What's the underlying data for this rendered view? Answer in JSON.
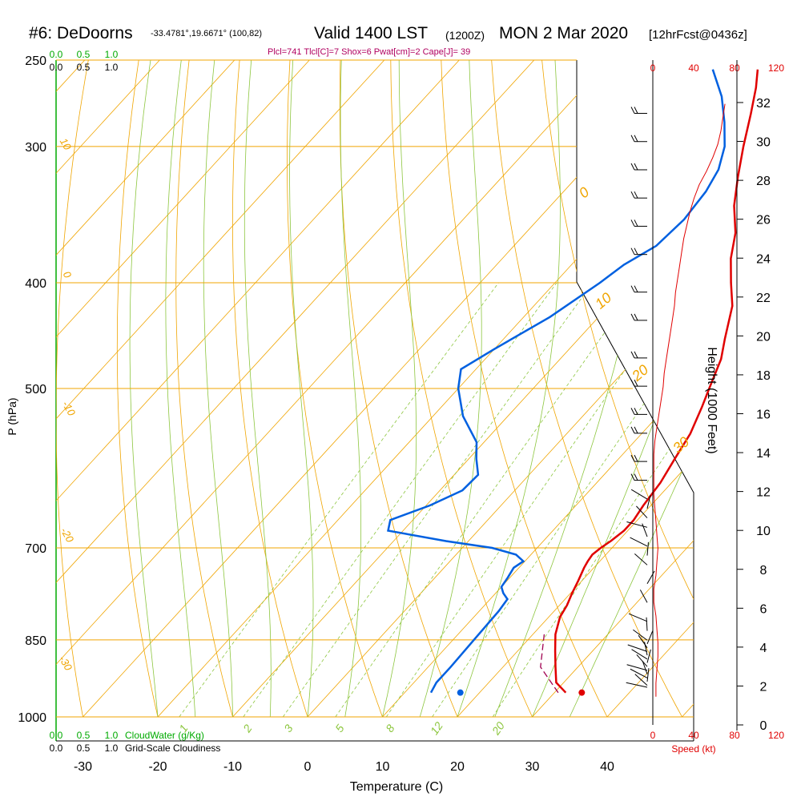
{
  "header": {
    "station": "#6: DeDoorns",
    "coords": "-33.4781°,19.6671° (100,82)",
    "valid": "Valid 1400 LST",
    "zulu": "(1200Z)",
    "date": "MON 2 Mar 2020",
    "forecast": "[12hrFcst@0436z]",
    "params": "Plcl=741 Tlcl[C]=7 Shox=6 Pwat[cm]=2 Cape[J]= 39"
  },
  "chart_data": {
    "type": "skew-t",
    "xlabel": "Temperature (C)",
    "ylabel": "P (hPa)",
    "y2label": "Height (1000 Feet)",
    "xlim": [
      -30,
      45
    ],
    "ylim": [
      1000,
      250
    ],
    "x_ticks": [
      -30,
      -20,
      -10,
      0,
      10,
      20,
      30,
      40
    ],
    "p_ticks": [
      250,
      300,
      400,
      500,
      700,
      850,
      1000
    ],
    "height_ticks": [
      0,
      2,
      4,
      6,
      8,
      10,
      12,
      14,
      16,
      18,
      20,
      22,
      24,
      26,
      28,
      30,
      32
    ],
    "cloud_ticks": [
      "0.0",
      "0.5",
      "1.0"
    ],
    "cloudwater_label": "CloudWater (g/Kg)",
    "cloudiness_label": "Grid-Scale Cloudiness",
    "speed_ticks": [
      "0",
      "40",
      "80",
      "120"
    ],
    "speed_label": "Speed (kt)",
    "dry_adiabat_labels": [
      "10",
      "0",
      "-10",
      "-20",
      "-30",
      "0",
      "10",
      "20",
      "30"
    ],
    "mixing_ratio_labels": [
      "1",
      "2",
      "3",
      "5",
      "8",
      "12",
      "20"
    ],
    "series": [
      {
        "name": "temperature",
        "color": "#e00000",
        "points": [
          [
            31.5,
            950
          ],
          [
            29,
            930
          ],
          [
            27,
            900
          ],
          [
            25,
            870
          ],
          [
            23,
            840
          ],
          [
            21.5,
            810
          ],
          [
            21,
            790
          ],
          [
            20.2,
            770
          ],
          [
            19.5,
            750
          ],
          [
            18.7,
            730
          ],
          [
            18.4,
            720
          ],
          [
            18.2,
            710
          ],
          [
            18.5,
            700
          ],
          [
            19,
            690
          ],
          [
            19.5,
            675
          ],
          [
            19.5,
            660
          ],
          [
            19,
            640
          ],
          [
            18.5,
            610
          ],
          [
            17.5,
            580
          ],
          [
            16.5,
            550
          ],
          [
            14.8,
            520
          ],
          [
            13.5,
            500
          ],
          [
            11.5,
            470
          ],
          [
            9.5,
            450
          ],
          [
            6.5,
            420
          ],
          [
            3.5,
            400
          ],
          [
            0.5,
            380
          ],
          [
            -2,
            360
          ],
          [
            -5.5,
            340
          ],
          [
            -8.5,
            320
          ],
          [
            -11.5,
            300
          ],
          [
            -14.5,
            280
          ],
          [
            -17,
            265
          ],
          [
            -19,
            255
          ]
        ]
      },
      {
        "name": "dewpoint",
        "color": "#0060e0",
        "points": [
          [
            13.5,
            950
          ],
          [
            13,
            930
          ],
          [
            13,
            900
          ],
          [
            12.8,
            850
          ],
          [
            12.6,
            800
          ],
          [
            12.3,
            780
          ],
          [
            11,
            770
          ],
          [
            10,
            760
          ],
          [
            9.7,
            745
          ],
          [
            9.3,
            730
          ],
          [
            9.8,
            720
          ],
          [
            8,
            710
          ],
          [
            4,
            700
          ],
          [
            -3,
            690
          ],
          [
            -12,
            675
          ],
          [
            -13,
            660
          ],
          [
            -9.5,
            640
          ],
          [
            -7,
            620
          ],
          [
            -6.8,
            600
          ],
          [
            -9,
            580
          ],
          [
            -11,
            560
          ],
          [
            -16,
            530
          ],
          [
            -20,
            500
          ],
          [
            -22,
            480
          ],
          [
            -20,
            460
          ],
          [
            -16.5,
            430
          ],
          [
            -14,
            400
          ],
          [
            -13,
            385
          ],
          [
            -11,
            370
          ],
          [
            -10.5,
            350
          ],
          [
            -11,
            330
          ],
          [
            -12,
            315
          ],
          [
            -14,
            300
          ],
          [
            -17,
            285
          ],
          [
            -20.5,
            270
          ],
          [
            -25,
            255
          ]
        ]
      },
      {
        "name": "parcel",
        "color": "#a00050",
        "points": [
          [
            30.5,
            950
          ],
          [
            25,
            900
          ],
          [
            21.5,
            840
          ]
        ]
      }
    ],
    "surface_temperature": 33,
    "surface_dewpoint": 17,
    "wind_speed_profile_kt": [
      3,
      3,
      4,
      5,
      5,
      4,
      3,
      1,
      1,
      3,
      4,
      5,
      4,
      3,
      2,
      1,
      1,
      1,
      1,
      2,
      4,
      6,
      8,
      10,
      11,
      13,
      15,
      17,
      19,
      21,
      22,
      24,
      26,
      28,
      30,
      33,
      36,
      40,
      45,
      52,
      58,
      63,
      66,
      68,
      70
    ],
    "barb_heights_kft": [
      2,
      2.1,
      2.3,
      2.5,
      2.7,
      2.9,
      3.1,
      3.3,
      3.5,
      3.7,
      3.9,
      4.1,
      4.3,
      4.5,
      5,
      5.5,
      6.5,
      7.5,
      8.5,
      9,
      9.5,
      10,
      10.5,
      11,
      11.5,
      12,
      13,
      14,
      15.5,
      16.5,
      18,
      19.5,
      21.5,
      23,
      25,
      26.5,
      28,
      29.5,
      31,
      32.5
    ]
  }
}
